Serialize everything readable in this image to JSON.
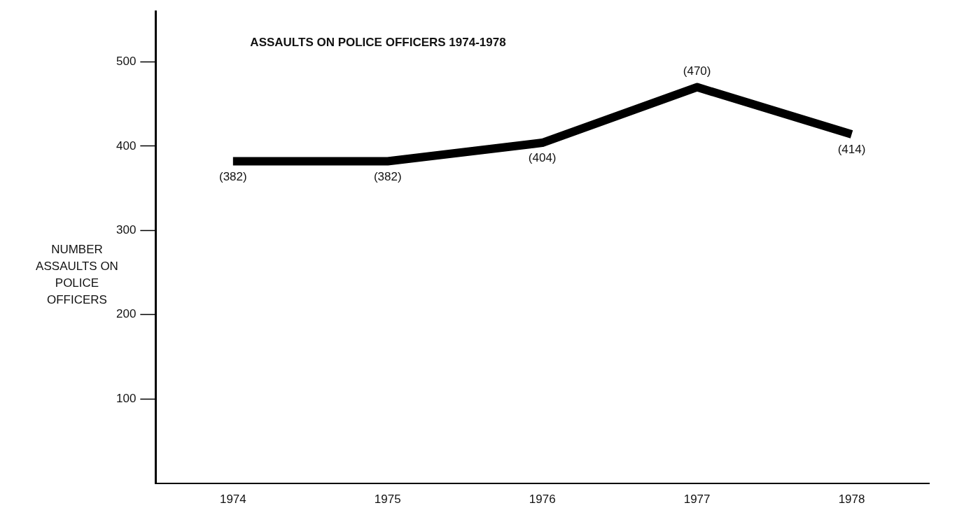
{
  "chart_data": {
    "type": "line",
    "title": "ASSAULTS ON POLICE OFFICERS 1974-1978",
    "ylabel": "NUMBER ASSAULTS ON POLICE OFFICERS",
    "categories": [
      "1974",
      "1975",
      "1976",
      "1977",
      "1978"
    ],
    "series": [
      {
        "color": "#000000",
        "values": [
          382,
          382,
          404,
          470,
          414
        ]
      }
    ],
    "value_labels": [
      "(382)",
      "(382)",
      "(404)",
      "(470)",
      "(414)"
    ],
    "ylim": [
      0,
      560
    ],
    "yticks": [
      100,
      200,
      300,
      400,
      500
    ],
    "grid": false,
    "legend": false,
    "marker": "none",
    "line_style": "solid"
  }
}
